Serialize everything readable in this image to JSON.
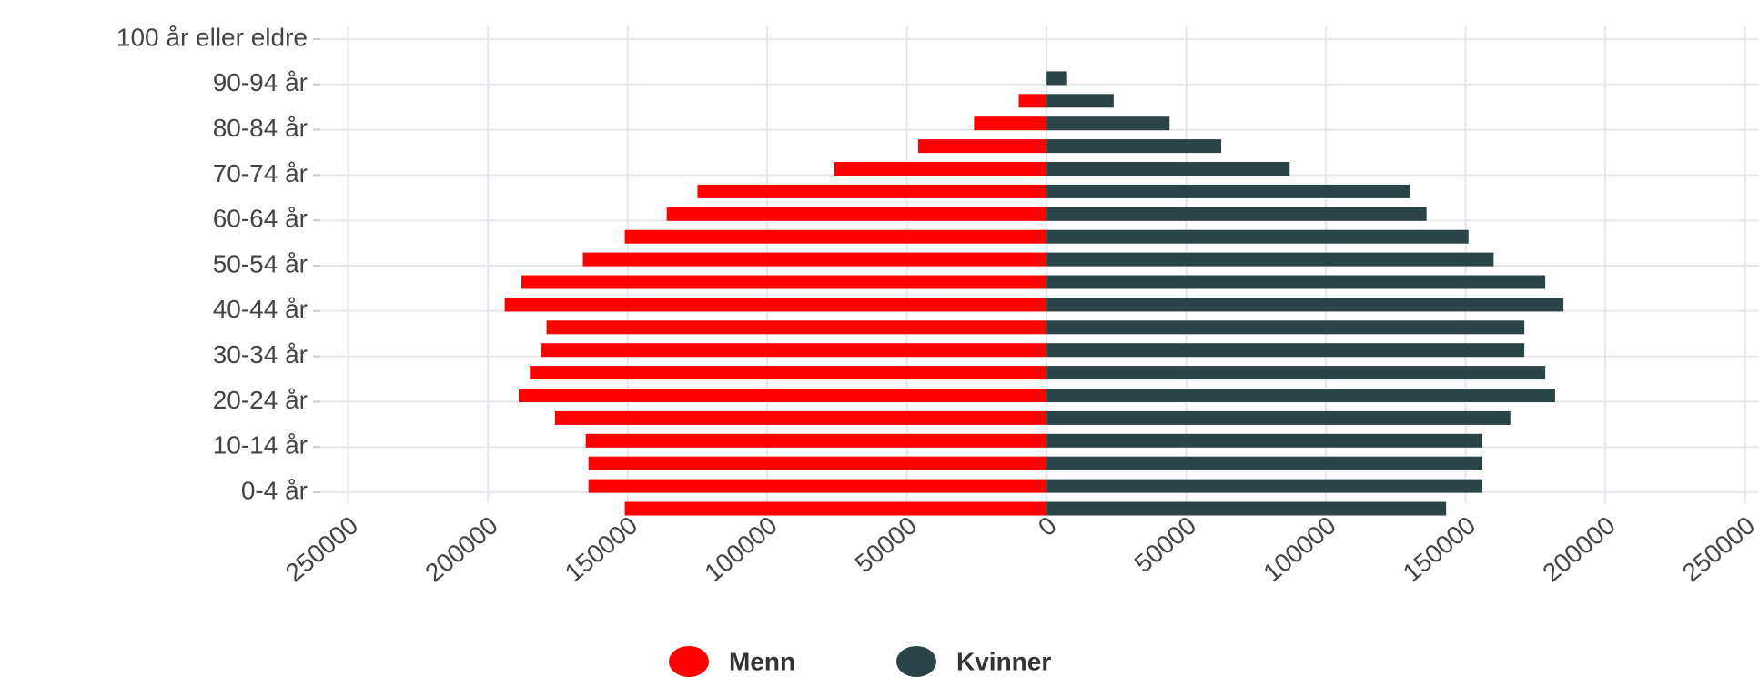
{
  "chart_data": {
    "type": "pyramid",
    "categories": [
      "0-4 år",
      null,
      "10-14 år",
      null,
      "20-24 år",
      null,
      "30-34 år",
      null,
      "40-44 år",
      null,
      "50-54 år",
      null,
      "60-64 år",
      null,
      "70-74 år",
      null,
      "80-84 år",
      null,
      "90-94 år",
      null,
      "100 år eller eldre"
    ],
    "series": [
      {
        "name": "Menn",
        "color": "#ff0000",
        "values": [
          -151000,
          -164000,
          -164000,
          -165000,
          -176000,
          -189000,
          -185000,
          -181000,
          -179000,
          -194000,
          -188000,
          -166000,
          -151000,
          -136000,
          -125000,
          -76000,
          -46000,
          -26000,
          -10000,
          0,
          0
        ]
      },
      {
        "name": "Kvinner",
        "color": "#2a4448",
        "values": [
          143000,
          156000,
          156000,
          156000,
          166000,
          182000,
          178500,
          171000,
          171000,
          185000,
          178500,
          160000,
          151000,
          136000,
          130000,
          87000,
          62500,
          44000,
          24000,
          7000,
          0
        ]
      }
    ],
    "xlim": [
      -260000,
      255000
    ],
    "xticks": [
      {
        "value": -250000,
        "label": "250000"
      },
      {
        "value": -200000,
        "label": "200000"
      },
      {
        "value": -150000,
        "label": "150000"
      },
      {
        "value": -100000,
        "label": "100000"
      },
      {
        "value": -50000,
        "label": "50000"
      },
      0,
      50000,
      100000,
      150000,
      200000,
      250000
    ],
    "grid": true
  }
}
